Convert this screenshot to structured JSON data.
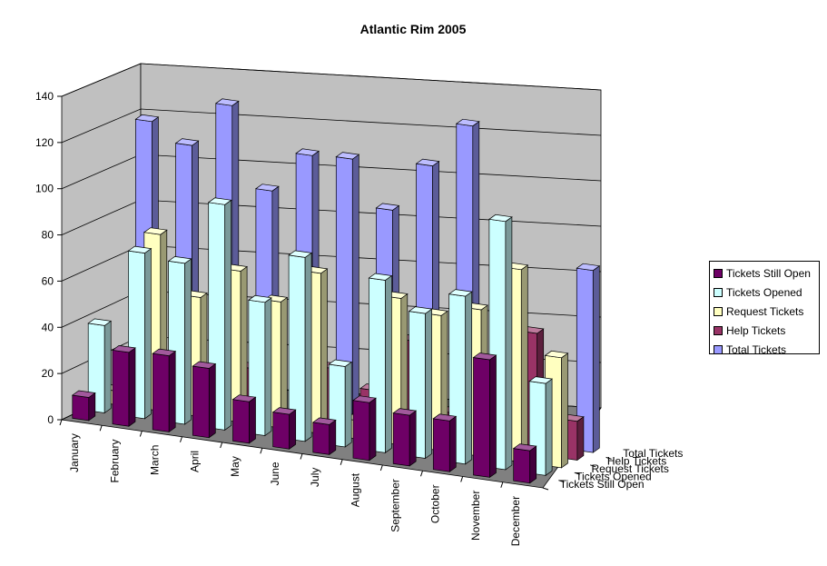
{
  "chart_data": {
    "type": "bar",
    "title": "Atlantic Rim 2005",
    "categories": [
      "January",
      "February",
      "March",
      "April",
      "May",
      "June",
      "July",
      "August",
      "September",
      "October",
      "November",
      "December"
    ],
    "series": [
      {
        "name": "Tickets Still Open",
        "color": "#6E0066",
        "values": [
          10,
          32,
          33,
          30,
          18,
          15,
          13,
          25,
          22,
          22,
          51,
          14
        ]
      },
      {
        "name": "Tickets Opened",
        "color": "#CCFFFF",
        "values": [
          38,
          72,
          70,
          98,
          58,
          80,
          35,
          75,
          63,
          73,
          108,
          40
        ]
      },
      {
        "name": "Request Tickets",
        "color": "#FFFFC0",
        "values": [
          6,
          77,
          52,
          66,
          55,
          70,
          8,
          64,
          59,
          64,
          84,
          48
        ]
      },
      {
        "name": "Help Tickets",
        "color": "#993366",
        "values": [
          0,
          0,
          0,
          20,
          0,
          25,
          18,
          42,
          13,
          0,
          53,
          17
        ]
      },
      {
        "name": "Total Tickets",
        "color": "#9999FF",
        "values": [
          118,
          110,
          130,
          95,
          113,
          114,
          94,
          116,
          136,
          0,
          0,
          80
        ]
      }
    ],
    "ylim": [
      0,
      140
    ],
    "yticks": [
      "0",
      "20",
      "40",
      "60",
      "80",
      "100",
      "120",
      "140"
    ],
    "grid": true,
    "legend_position": "right"
  }
}
